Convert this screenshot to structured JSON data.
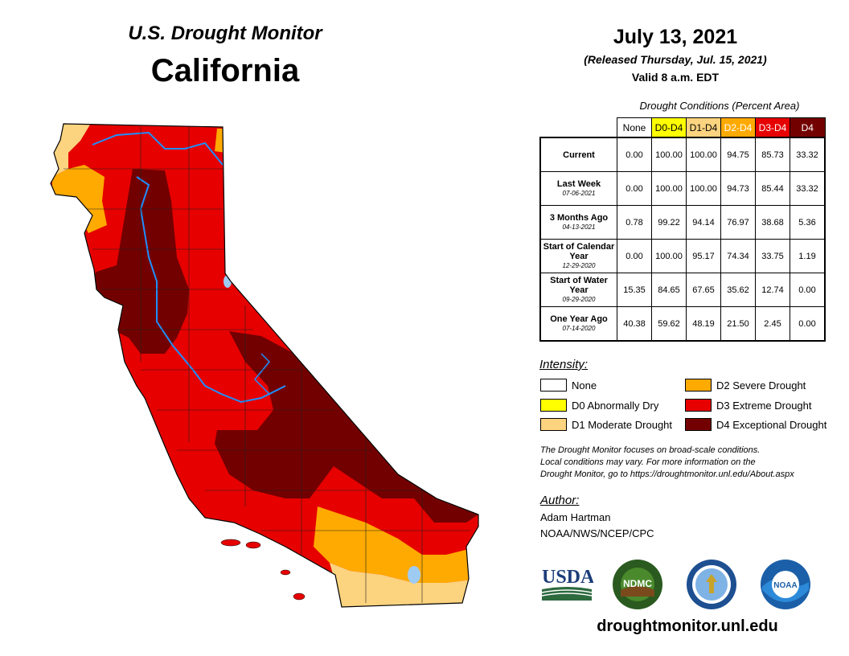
{
  "header": {
    "doc_title": "U.S. Drought Monitor",
    "state": "California",
    "date": "July 13, 2021",
    "released": "(Released Thursday, Jul. 15, 2021)",
    "valid": "Valid 8 a.m. EDT"
  },
  "table": {
    "caption": "Drought Conditions (Percent Area)",
    "columns": [
      {
        "label": "None",
        "color": "#ffffff",
        "text_color": "#000000"
      },
      {
        "label": "D0-D4",
        "color": "#ffff00",
        "text_color": "#000000"
      },
      {
        "label": "D1-D4",
        "color": "#fcd37f",
        "text_color": "#000000"
      },
      {
        "label": "D2-D4",
        "color": "#ffaa00",
        "text_color": "#ffffff"
      },
      {
        "label": "D3-D4",
        "color": "#e60000",
        "text_color": "#ffffff"
      },
      {
        "label": "D4",
        "color": "#730000",
        "text_color": "#ffffff"
      }
    ],
    "rows": [
      {
        "label": "Current",
        "date": "",
        "values": [
          "0.00",
          "100.00",
          "100.00",
          "94.75",
          "85.73",
          "33.32"
        ]
      },
      {
        "label": "Last Week",
        "date": "07-06-2021",
        "values": [
          "0.00",
          "100.00",
          "100.00",
          "94.73",
          "85.44",
          "33.32"
        ]
      },
      {
        "label": "3 Months Ago",
        "date": "04-13-2021",
        "values": [
          "0.78",
          "99.22",
          "94.14",
          "76.97",
          "38.68",
          "5.36"
        ]
      },
      {
        "label": "Start of Calendar Year",
        "date": "12-29-2020",
        "values": [
          "0.00",
          "100.00",
          "95.17",
          "74.34",
          "33.75",
          "1.19"
        ]
      },
      {
        "label": "Start of Water Year",
        "date": "09-29-2020",
        "values": [
          "15.35",
          "84.65",
          "67.65",
          "35.62",
          "12.74",
          "0.00"
        ]
      },
      {
        "label": "One Year Ago",
        "date": "07-14-2020",
        "values": [
          "40.38",
          "59.62",
          "48.19",
          "21.50",
          "2.45",
          "0.00"
        ]
      }
    ]
  },
  "legend": {
    "title": "Intensity:",
    "items": [
      {
        "label": "None",
        "color": "#ffffff"
      },
      {
        "label": "D0 Abnormally Dry",
        "color": "#ffff00"
      },
      {
        "label": "D1 Moderate Drought",
        "color": "#fcd37f"
      },
      {
        "label": "D2 Severe Drought",
        "color": "#ffaa00"
      },
      {
        "label": "D3 Extreme Drought",
        "color": "#e60000"
      },
      {
        "label": "D4 Exceptional Drought",
        "color": "#730000"
      }
    ]
  },
  "note": {
    "line1": "The Drought Monitor focuses on broad-scale conditions.",
    "line2": "Local conditions may vary. For more information on the",
    "line3": "Drought Monitor, go to https://droughtmonitor.unl.edu/About.aspx"
  },
  "author": {
    "title": "Author:",
    "name": "Adam Hartman",
    "org": "NOAA/NWS/NCEP/CPC"
  },
  "logos": {
    "usda": "USDA",
    "ndmc": "NDMC",
    "doc": "U.S. Department of Commerce seal",
    "noaa": "NOAA"
  },
  "footer": {
    "url": "droughtmonitor.unl.edu"
  }
}
